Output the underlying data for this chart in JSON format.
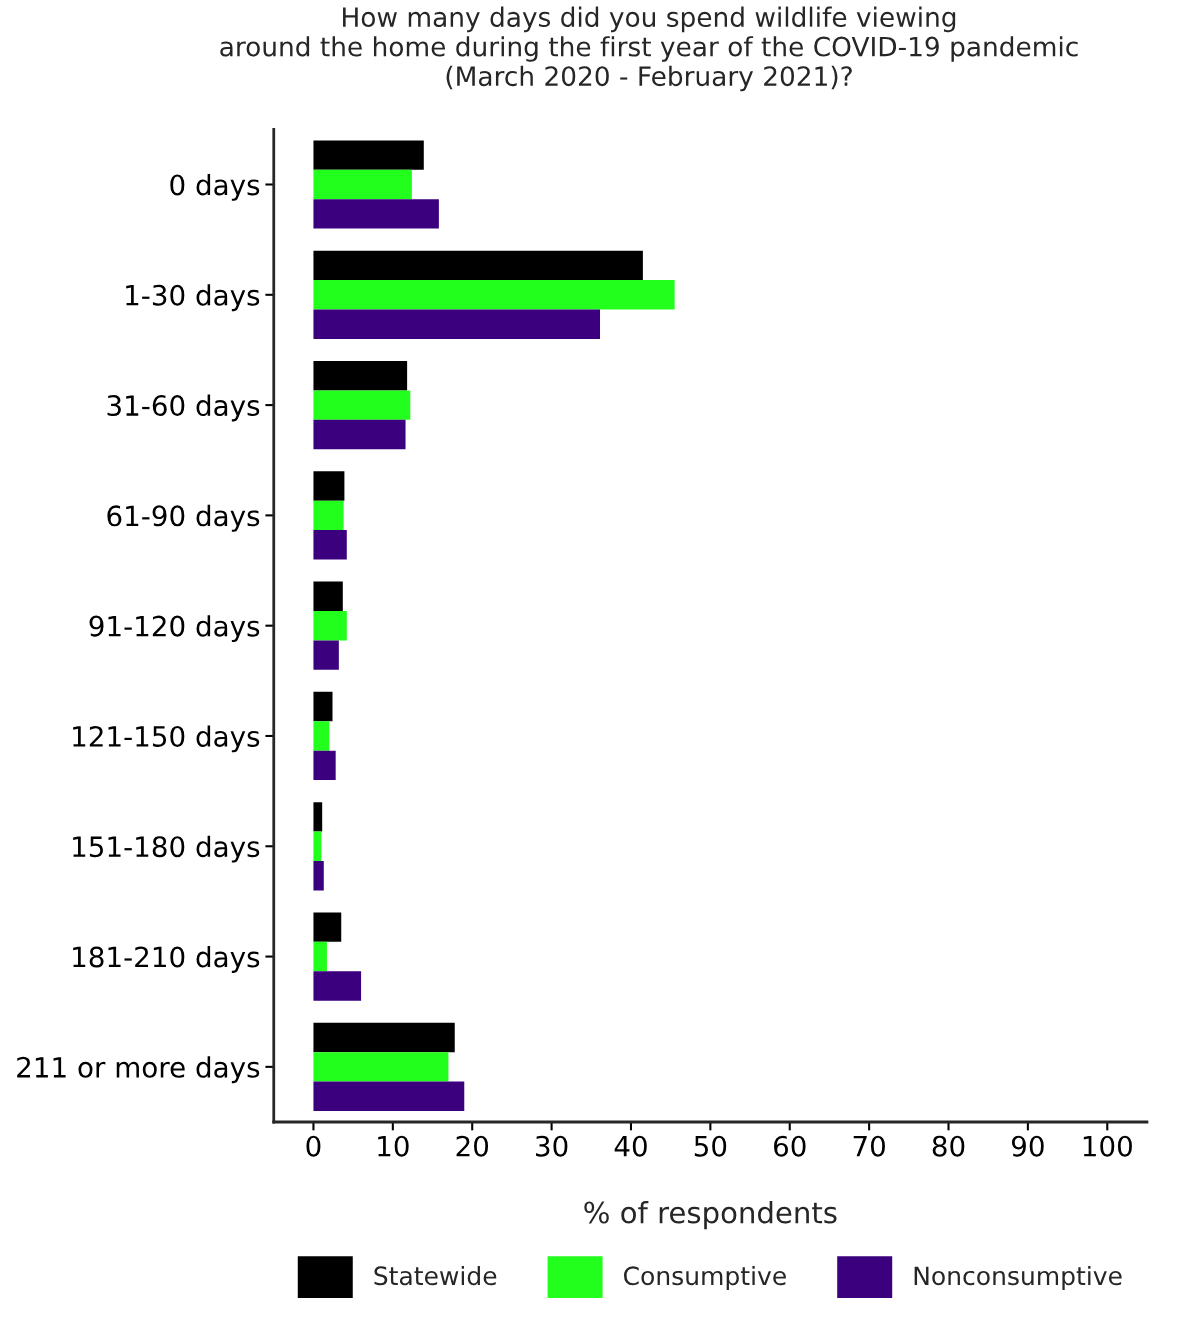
{
  "chart_data": {
    "type": "bar",
    "orientation": "horizontal",
    "title": "How many days did you spend wildlife viewing\naround the home during the first year of the COVID-19 pandemic\n(March 2020 - February 2021)?",
    "xlabel": "% of respondents",
    "categories": [
      "0 days",
      "1-30 days",
      "31-60 days",
      "61-90 days",
      "91-120 days",
      "121-150 days",
      "151-180 days",
      "181-210 days",
      "211 or more days"
    ],
    "series": [
      {
        "name": "Statewide",
        "color": "#000000",
        "values": [
          13.9,
          41.5,
          11.8,
          3.9,
          3.7,
          2.4,
          1.1,
          3.5,
          17.8
        ]
      },
      {
        "name": "Consumptive",
        "color": "#22ff1c",
        "values": [
          12.4,
          45.5,
          12.2,
          3.8,
          4.2,
          2.0,
          1.0,
          1.7,
          17.0
        ]
      },
      {
        "name": "Nonconsumptive",
        "color": "#3a007d",
        "values": [
          15.8,
          36.1,
          11.6,
          4.2,
          3.2,
          2.8,
          1.3,
          6.0,
          19.0
        ]
      }
    ],
    "xlim": [
      -5,
      105
    ],
    "xticks": [
      0,
      10,
      20,
      30,
      40,
      50,
      60,
      70,
      80,
      90,
      100
    ],
    "grid": false,
    "legend": "bottom"
  }
}
